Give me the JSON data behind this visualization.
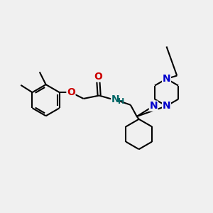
{
  "background_color": "#f0f0f0",
  "bond_color": "#000000",
  "oxygen_color": "#cc0000",
  "nitrogen_color": "#0000cc",
  "nh_color": "#006666",
  "lw": 1.5,
  "figsize": [
    3.0,
    3.0
  ],
  "dpi": 100,
  "xlim": [
    0,
    10
  ],
  "ylim": [
    0,
    10
  ]
}
